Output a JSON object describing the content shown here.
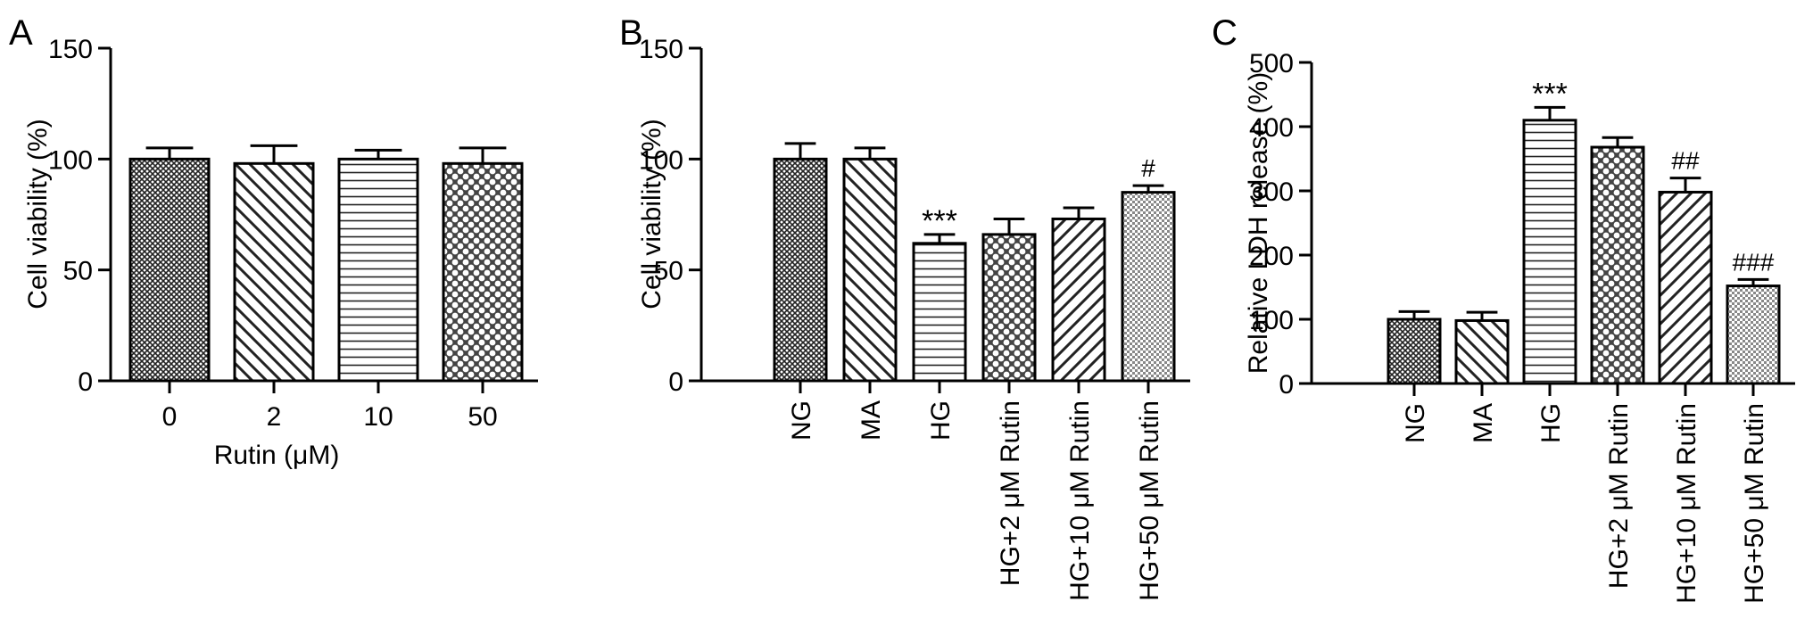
{
  "chart_data": [
    {
      "panel": "A",
      "type": "bar",
      "ylabel": "Cell viability (%)",
      "xlabel": "Rutin (μM)",
      "ylim": [
        0,
        150
      ],
      "yticks": [
        0,
        50,
        100,
        150
      ],
      "categories": [
        "0",
        "2",
        "10",
        "50"
      ],
      "values": [
        100,
        98,
        100,
        98
      ],
      "errors": [
        5,
        8,
        4,
        7
      ],
      "annotations": [
        "",
        "",
        "",
        ""
      ],
      "patterns": [
        "crosshatch",
        "diag-down",
        "horizontal",
        "checker"
      ]
    },
    {
      "panel": "B",
      "type": "bar",
      "ylabel": "Cell viability (%)",
      "xlabel": "",
      "ylim": [
        0,
        150
      ],
      "yticks": [
        0,
        50,
        100,
        150
      ],
      "categories": [
        "NG",
        "MA",
        "HG",
        "HG+2 μM Rutin",
        "HG+10 μM Rutin",
        "HG+50 μM Rutin"
      ],
      "values": [
        100,
        100,
        62,
        66,
        73,
        85
      ],
      "errors": [
        7,
        5,
        4,
        7,
        5,
        3
      ],
      "annotations": [
        "",
        "",
        "***",
        "",
        "",
        "#"
      ],
      "patterns": [
        "crosshatch",
        "diag-down",
        "horizontal",
        "checker",
        "diag-up",
        "fine-checker"
      ]
    },
    {
      "panel": "C",
      "type": "bar",
      "ylabel": "Relative LDH release (%)",
      "xlabel": "",
      "ylim": [
        0,
        500
      ],
      "yticks": [
        0,
        100,
        200,
        300,
        400,
        500
      ],
      "categories": [
        "NG",
        "MA",
        "HG",
        "HG+2 μM Rutin",
        "HG+10 μM Rutin",
        "HG+50 μM Rutin"
      ],
      "values": [
        100,
        98,
        410,
        368,
        298,
        152
      ],
      "errors": [
        12,
        13,
        20,
        15,
        22,
        10
      ],
      "annotations": [
        "",
        "",
        "***",
        "",
        "##",
        "###"
      ],
      "patterns": [
        "crosshatch",
        "diag-down",
        "horizontal",
        "checker",
        "diag-up",
        "fine-checker"
      ]
    }
  ]
}
